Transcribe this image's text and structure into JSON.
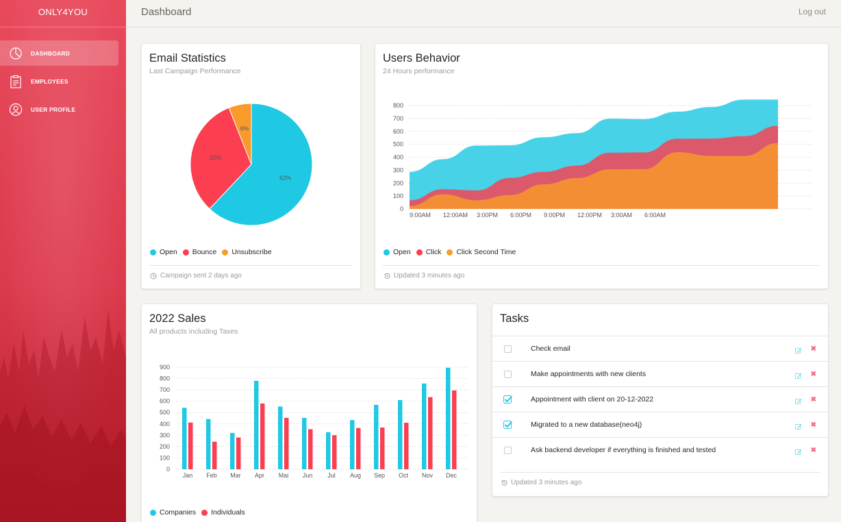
{
  "sidebar": {
    "brand": "ONLY4YOU",
    "items": [
      {
        "label": "DASHBOARD",
        "icon": "pie-chart-icon",
        "active": true
      },
      {
        "label": "EMPLOYEES",
        "icon": "clipboard-icon",
        "active": false
      },
      {
        "label": "USER PROFILE",
        "icon": "user-icon",
        "active": false
      }
    ]
  },
  "header": {
    "title": "Dashboard",
    "logout": "Log out"
  },
  "colors": {
    "cyan": "#1fc8e3",
    "red": "#fc3e51",
    "orange": "#f99a2a",
    "accent": "#e84a5c"
  },
  "email_stats": {
    "title": "Email Statistics",
    "subtitle": "Last Campaign Performance",
    "footer": "Campaign sent 2 days ago",
    "legend": [
      "Open",
      "Bounce",
      "Unsubscribe"
    ],
    "chart_data": {
      "type": "pie",
      "labels": [
        "Open",
        "Bounce",
        "Unsubscribe"
      ],
      "values": [
        62,
        32,
        6
      ],
      "value_labels": [
        "62%",
        "32%",
        "6%"
      ]
    }
  },
  "users_behavior": {
    "title": "Users Behavior",
    "subtitle": "24 Hours performance",
    "footer": "Updated 3 minutes ago",
    "legend": [
      "Open",
      "Click",
      "Click Second Time"
    ],
    "chart_data": {
      "type": "area",
      "x_tick_labels": [
        "9:00AM",
        "12:00AM",
        "3:00PM",
        "6:00PM",
        "9:00PM",
        "12:00PM",
        "3:00AM",
        "6:00AM"
      ],
      "y_tick_labels": [
        "0",
        "100",
        "200",
        "300",
        "400",
        "500",
        "600",
        "700",
        "800"
      ],
      "ylim": [
        0,
        800
      ],
      "x_count": 12,
      "series": [
        {
          "name": "Open",
          "values": [
            287,
            385,
            490,
            492,
            554,
            586,
            698,
            695,
            752,
            788,
            846,
            846
          ]
        },
        {
          "name": "Click",
          "values": [
            67,
            152,
            143,
            240,
            287,
            335,
            435,
            437,
            543,
            544,
            563,
            643
          ]
        },
        {
          "name": "Click Second Time",
          "values": [
            23,
            113,
            67,
            108,
            190,
            239,
            307,
            308,
            439,
            410,
            410,
            509
          ]
        }
      ]
    }
  },
  "sales": {
    "title": "2022 Sales",
    "subtitle": "All products including Taxes",
    "legend": [
      "Companies",
      "Individuals"
    ],
    "chart_data": {
      "type": "bar",
      "categories": [
        "Jan",
        "Feb",
        "Mar",
        "Apr",
        "Mai",
        "Jun",
        "Jul",
        "Aug",
        "Sep",
        "Oct",
        "Nov",
        "Dec"
      ],
      "y_tick_labels": [
        "0",
        "100",
        "200",
        "300",
        "400",
        "500",
        "600",
        "700",
        "800",
        "900"
      ],
      "ylim": [
        0,
        900
      ],
      "series": [
        {
          "name": "Companies",
          "values": [
            542,
            443,
            320,
            780,
            553,
            453,
            326,
            434,
            568,
            610,
            756,
            895
          ]
        },
        {
          "name": "Individuals",
          "values": [
            412,
            243,
            280,
            580,
            453,
            353,
            300,
            364,
            368,
            410,
            636,
            695
          ]
        }
      ]
    }
  },
  "tasks": {
    "title": "Tasks",
    "footer": "Updated 3 minutes ago",
    "items": [
      {
        "text": "Check email",
        "checked": false
      },
      {
        "text": "Make appointments with new clients",
        "checked": false
      },
      {
        "text": "Appointment with client on 20-12-2022",
        "checked": true
      },
      {
        "text": "Migrated to a new database(neo4j)",
        "checked": true
      },
      {
        "text": "Ask backend developer if everything is finished and tested",
        "checked": false
      }
    ]
  }
}
